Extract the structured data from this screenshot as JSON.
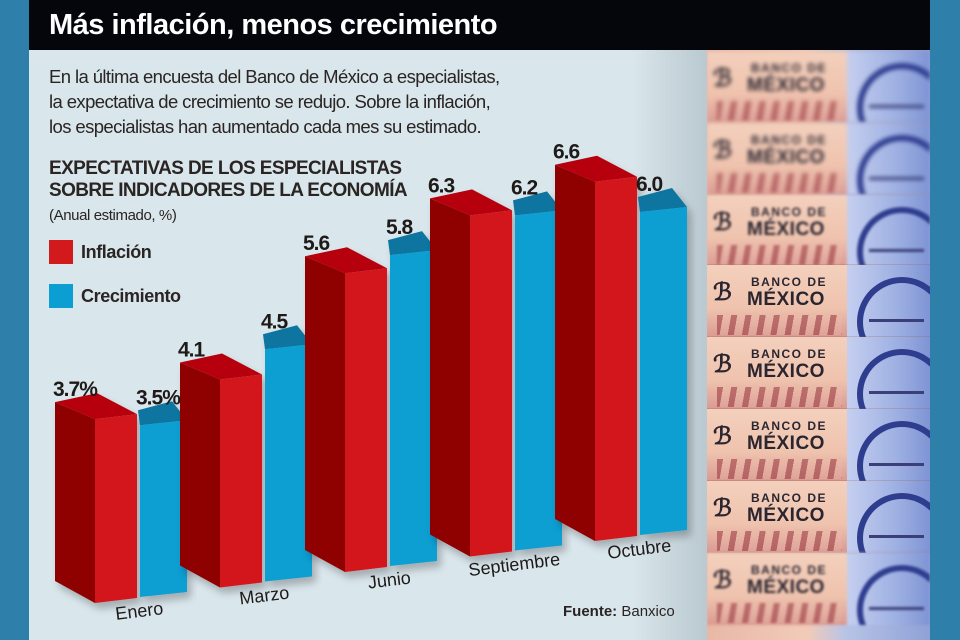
{
  "header": {
    "title": "Más inflación, menos crecimiento"
  },
  "intro": {
    "lines": [
      "En la última encuesta del Banco de México a especialistas,",
      "la expectativa de crecimiento se redujo. Sobre la inflación,",
      "los especialistas han aumentado cada mes su estimado."
    ]
  },
  "legend": {
    "inflation": "Inflación",
    "growth": "Crecimiento"
  },
  "source": {
    "label": "Fuente:",
    "value": "Banxico"
  },
  "photo": {
    "banknote_text_line1": "BANCO DE",
    "banknote_text_line2": "MÉXICO",
    "logo_glyph": "ℬ"
  },
  "colors": {
    "frame_blue": "#2f7fab",
    "header_black": "#05060c",
    "panel_bg": "#d9e6ec",
    "inflation_front": "#d2191c",
    "inflation_side": "#8f0006",
    "inflation_top": "#b60409",
    "growth_front": "#0a9ed2",
    "growth_top": "#0a74a0"
  },
  "chart_data": {
    "type": "bar",
    "title": "EXPECTATIVAS DE LOS ESPECIALISTAS SOBRE INDICADORES DE LA ECONOMÍA",
    "title_lines": [
      "EXPECTATIVAS DE LOS ESPECIALISTAS",
      "SOBRE INDICADORES DE LA ECONOMÍA"
    ],
    "subtitle": "(Anual estimado, %)",
    "xlabel": "",
    "ylabel": "",
    "categories": [
      "Enero",
      "Marzo",
      "Junio",
      "Septiembre",
      "Octubre"
    ],
    "series": [
      {
        "name": "Inflación",
        "values": [
          3.7,
          4.1,
          5.6,
          6.3,
          6.6
        ],
        "labels": [
          "3.7%",
          "4.1",
          "5.6",
          "6.3",
          "6.6"
        ]
      },
      {
        "name": "Crecimiento",
        "values": [
          3.5,
          4.5,
          5.8,
          6.2,
          6.0
        ],
        "labels": [
          "3.5%",
          "4.5",
          "5.8",
          "6.2",
          "6.0"
        ]
      }
    ],
    "legend_position": "top-left",
    "grid": false,
    "style": "3d-perspective"
  }
}
